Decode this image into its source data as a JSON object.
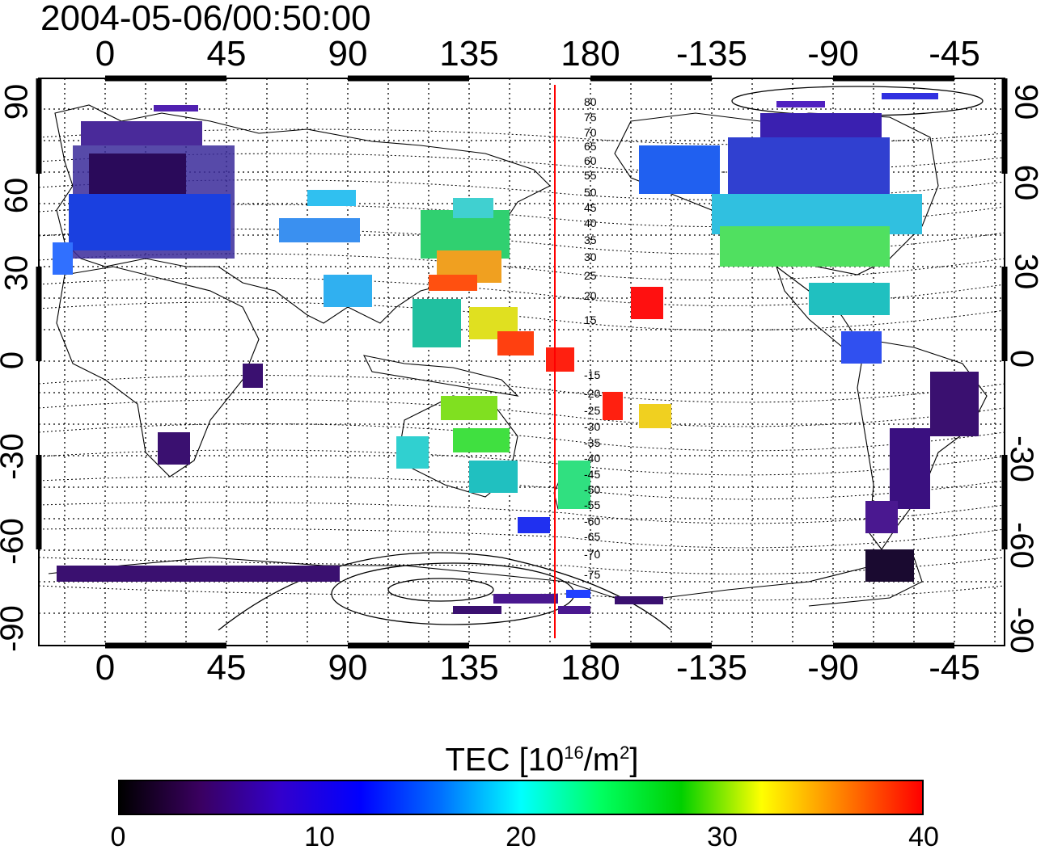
{
  "title": "2004-05-06/00:50:00",
  "map": {
    "lon_ticks": [
      "0",
      "45",
      "90",
      "135",
      "180",
      "-135",
      "-90",
      "-45"
    ],
    "lat_ticks_left": [
      "90",
      "60",
      "30",
      "0",
      "-30",
      "-60",
      "-90"
    ],
    "lat_ticks_right": [
      "90",
      "60",
      "30",
      "0",
      "-30",
      "-60",
      "-90"
    ],
    "meridian_line_color": "#ff0000",
    "mlat_labels_north": [
      "80",
      "75",
      "70",
      "65",
      "60",
      "55",
      "50",
      "45",
      "40",
      "35",
      "30",
      "25",
      "20",
      "15"
    ],
    "mlat_labels_south": [
      "-15",
      "-20",
      "-25",
      "-30",
      "-35",
      "-40",
      "-45",
      "-50",
      "-55",
      "-60",
      "-65",
      "-70",
      "-75"
    ]
  },
  "colorbar": {
    "title_main": "TEC  [10",
    "title_exp1": "16",
    "title_mid": "/m",
    "title_exp2": "2",
    "title_end": "]",
    "ticks": [
      "0",
      "10",
      "20",
      "30",
      "40"
    ],
    "range": [
      0,
      40
    ],
    "colors": [
      "#000000",
      "#3a0060",
      "#3300cc",
      "#0000ff",
      "#0070ff",
      "#00ffff",
      "#00ff60",
      "#00d000",
      "#ffff00",
      "#ff8000",
      "#ff0000"
    ]
  }
}
